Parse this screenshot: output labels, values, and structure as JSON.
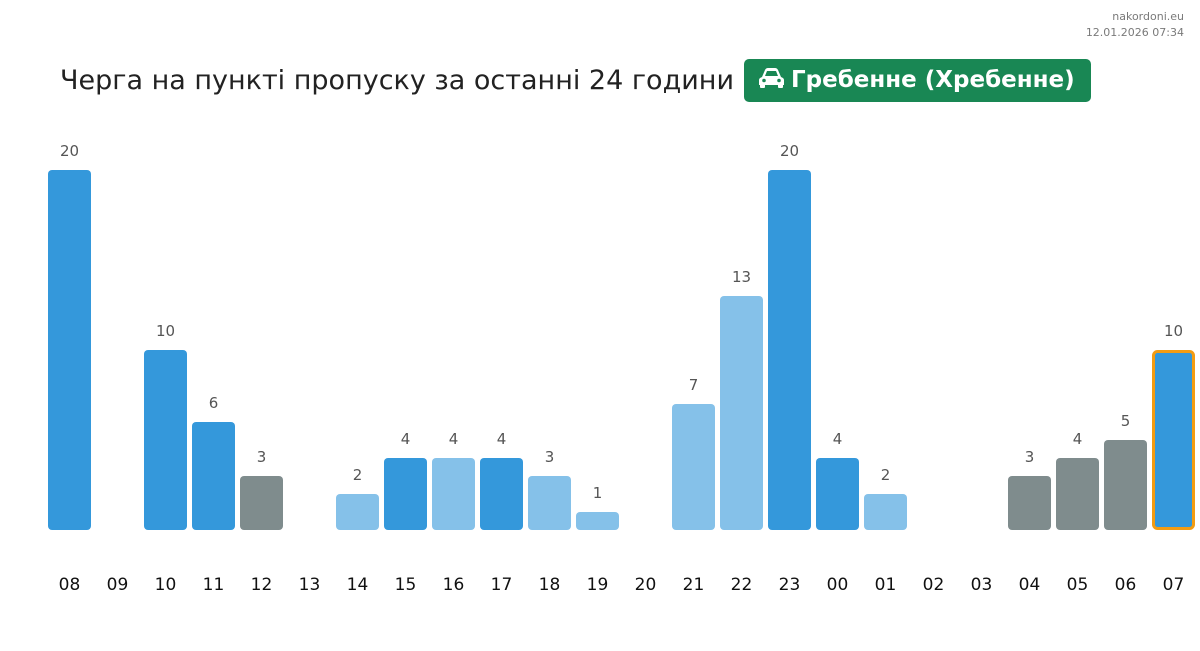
{
  "site": {
    "name": "nakordoni.eu",
    "timestamp": "12.01.2026 07:34"
  },
  "header": {
    "title": "Черга на пункті пропуску за останні 24 години",
    "crossing": "Гребенне (Хребенне)",
    "icon": "car-icon"
  },
  "colors": {
    "badge": "#198754",
    "dark_blue": "#3498db",
    "light_blue": "#85c1e9",
    "gray": "#7f8c8d",
    "highlight": "#f39c12"
  },
  "chart_data": {
    "type": "bar",
    "categories": [
      "08",
      "09",
      "10",
      "11",
      "12",
      "13",
      "14",
      "15",
      "16",
      "17",
      "18",
      "19",
      "20",
      "21",
      "22",
      "23",
      "00",
      "01",
      "02",
      "03",
      "04",
      "05",
      "06",
      "07"
    ],
    "values": [
      20,
      0,
      10,
      6,
      3,
      0,
      2,
      4,
      4,
      4,
      3,
      1,
      0,
      7,
      13,
      20,
      4,
      2,
      0,
      0,
      3,
      4,
      5,
      10
    ],
    "bar_colors": [
      "dark_blue",
      "none",
      "dark_blue",
      "dark_blue",
      "gray",
      "none",
      "light_blue",
      "dark_blue",
      "light_blue",
      "dark_blue",
      "light_blue",
      "light_blue",
      "none",
      "light_blue",
      "light_blue",
      "dark_blue",
      "dark_blue",
      "light_blue",
      "none",
      "none",
      "gray",
      "gray",
      "gray",
      "dark_blue"
    ],
    "highlighted": "07",
    "ylim": [
      0,
      20
    ],
    "grid": false
  }
}
